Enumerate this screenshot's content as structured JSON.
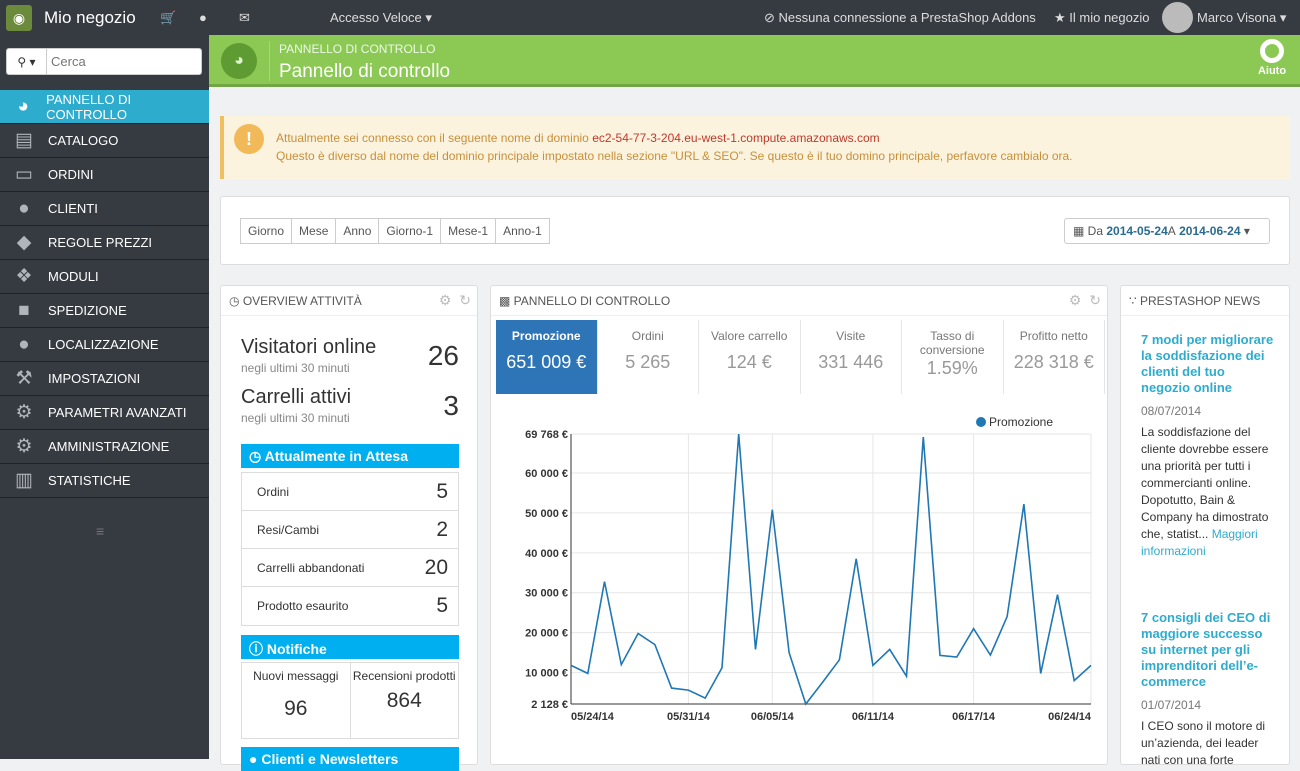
{
  "topbar": {
    "shop_name": "Mio negozio",
    "quick_access": "Accesso Veloce ▾",
    "addons": "Nessuna connessione a PrestaShop Addons",
    "my_shop": "Il mio negozio",
    "user": "Marco Visona ▾"
  },
  "sidebar": {
    "search_placeholder": "Cerca",
    "items": [
      {
        "label": "PANNELLO DI CONTROLLO",
        "icon": "dashboard-icon"
      },
      {
        "label": "CATALOGO",
        "icon": "book-icon"
      },
      {
        "label": "ORDINI",
        "icon": "credit-card-icon"
      },
      {
        "label": "CLIENTI",
        "icon": "users-icon"
      },
      {
        "label": "REGOLE PREZZI",
        "icon": "tags-icon"
      },
      {
        "label": "MODULI",
        "icon": "puzzle-icon"
      },
      {
        "label": "SPEDIZIONE",
        "icon": "truck-icon"
      },
      {
        "label": "LOCALIZZAZIONE",
        "icon": "globe-icon"
      },
      {
        "label": "IMPOSTAZIONI",
        "icon": "wrench-icon"
      },
      {
        "label": "PARAMETRI AVANZATI",
        "icon": "cogs-icon"
      },
      {
        "label": "AMMINISTRAZIONE",
        "icon": "cog-icon"
      },
      {
        "label": "STATISTICHE",
        "icon": "bar-chart-icon"
      }
    ]
  },
  "header": {
    "breadcrumb": "PANNELLO DI CONTROLLO",
    "title": "Pannello di controllo",
    "help": "Aiuto"
  },
  "alert": {
    "line1": "Attualmente sei connesso con il seguente nome di dominio ",
    "domain": "ec2-54-77-3-204.eu-west-1.compute.amazonaws.com",
    "line2": "Questo è diverso dal nome del dominio principale impostato nella sezione \"URL & SEO\". Se questo è il tuo domino principale, perfavore cambialo ora."
  },
  "filter": {
    "periods": [
      "Giorno",
      "Mese",
      "Anno",
      "Giorno-1",
      "Mese-1",
      "Anno-1"
    ],
    "date_from_prefix": "Da ",
    "date_from": "2014-05-24",
    "date_to_prefix": " A ",
    "date_to": "2014-06-24"
  },
  "activity": {
    "title": "OVERVIEW ATTIVITÀ",
    "online_label": "Visitatori online",
    "online_sub": "negli ultimi 30 minuti",
    "online_value": "26",
    "carts_label": "Carrelli attivi",
    "carts_sub": "negli ultimi 30 minuti",
    "carts_value": "3",
    "pending_title": "Attualmente in Attesa",
    "pending": [
      {
        "label": "Ordini",
        "value": "5"
      },
      {
        "label": "Resi/Cambi",
        "value": "2"
      },
      {
        "label": "Carrelli abbandonati",
        "value": "20"
      },
      {
        "label": "Prodotto esaurito",
        "value": "5"
      }
    ],
    "notif_title": "Notifiche",
    "messages_label": "Nuovi messaggi",
    "messages_value": "96",
    "reviews_label": "Recensioni prodotti",
    "reviews_value": "864",
    "newsletter_title": "Clienti e Newsletters"
  },
  "dashboard": {
    "title": "PANNELLO DI CONTROLLO",
    "kpis": [
      {
        "label": "Promozione",
        "value": "651 009 €"
      },
      {
        "label": "Ordini",
        "value": "5 265"
      },
      {
        "label": "Valore carrello",
        "value": "124 €"
      },
      {
        "label": "Visite",
        "value": "331 446"
      },
      {
        "label": "Tasso di conversione",
        "value": "1.59%"
      },
      {
        "label": "Profitto netto",
        "value": "228 318 €"
      }
    ]
  },
  "chart_data": {
    "type": "line",
    "title": "",
    "legend": "top-right",
    "series": [
      {
        "name": "Promozione",
        "color": "#1f77b4",
        "values": [
          11800,
          9800,
          32800,
          12000,
          19800,
          17000,
          6100,
          5600,
          3600,
          11200,
          69768,
          15800,
          50800,
          15000,
          2128,
          7600,
          13200,
          38500,
          11800,
          15800,
          9100,
          69000,
          14300,
          13900,
          21000,
          14400,
          24000,
          52200,
          9800,
          29500,
          8000,
          11800
        ]
      }
    ],
    "x_start": "05/24/14",
    "x_end": "06/24/14",
    "x_ticks": [
      {
        "label": "05/24/14",
        "index": 0
      },
      {
        "label": "05/31/14",
        "index": 7
      },
      {
        "label": "06/05/14",
        "index": 12
      },
      {
        "label": "06/11/14",
        "index": 18
      },
      {
        "label": "06/17/14",
        "index": 24
      },
      {
        "label": "06/24/14",
        "index": 31
      }
    ],
    "y_ticks": [
      {
        "label": "69 768 €",
        "value": 69768
      },
      {
        "label": "60 000 €",
        "value": 60000
      },
      {
        "label": "50 000 €",
        "value": 50000
      },
      {
        "label": "40 000 €",
        "value": 40000
      },
      {
        "label": "30 000 €",
        "value": 30000
      },
      {
        "label": "20 000 €",
        "value": 20000
      },
      {
        "label": "10 000 €",
        "value": 10000
      },
      {
        "label": "2 128 €",
        "value": 2128
      }
    ],
    "ylim": [
      2128,
      69768
    ]
  },
  "news": {
    "title": "PRESTASHOP NEWS",
    "items": [
      {
        "title": "7 modi per migliorare la soddisfazione dei clienti del tuo negozio online",
        "date": "08/07/2014",
        "text": "La soddisfazione del cliente dovrebbe essere una priorità per tutti i commercianti online. Dopotutto, Bain & Company ha dimostrato che, statist...",
        "more": "Maggiori informazioni"
      },
      {
        "title": "7 consigli dei CEO di maggiore successo su internet per gli imprenditori dell’e-commerce",
        "date": "01/07/2014",
        "text": "I CEO sono il motore di un’azienda, dei leader nati con una forte",
        "more": ""
      }
    ]
  }
}
